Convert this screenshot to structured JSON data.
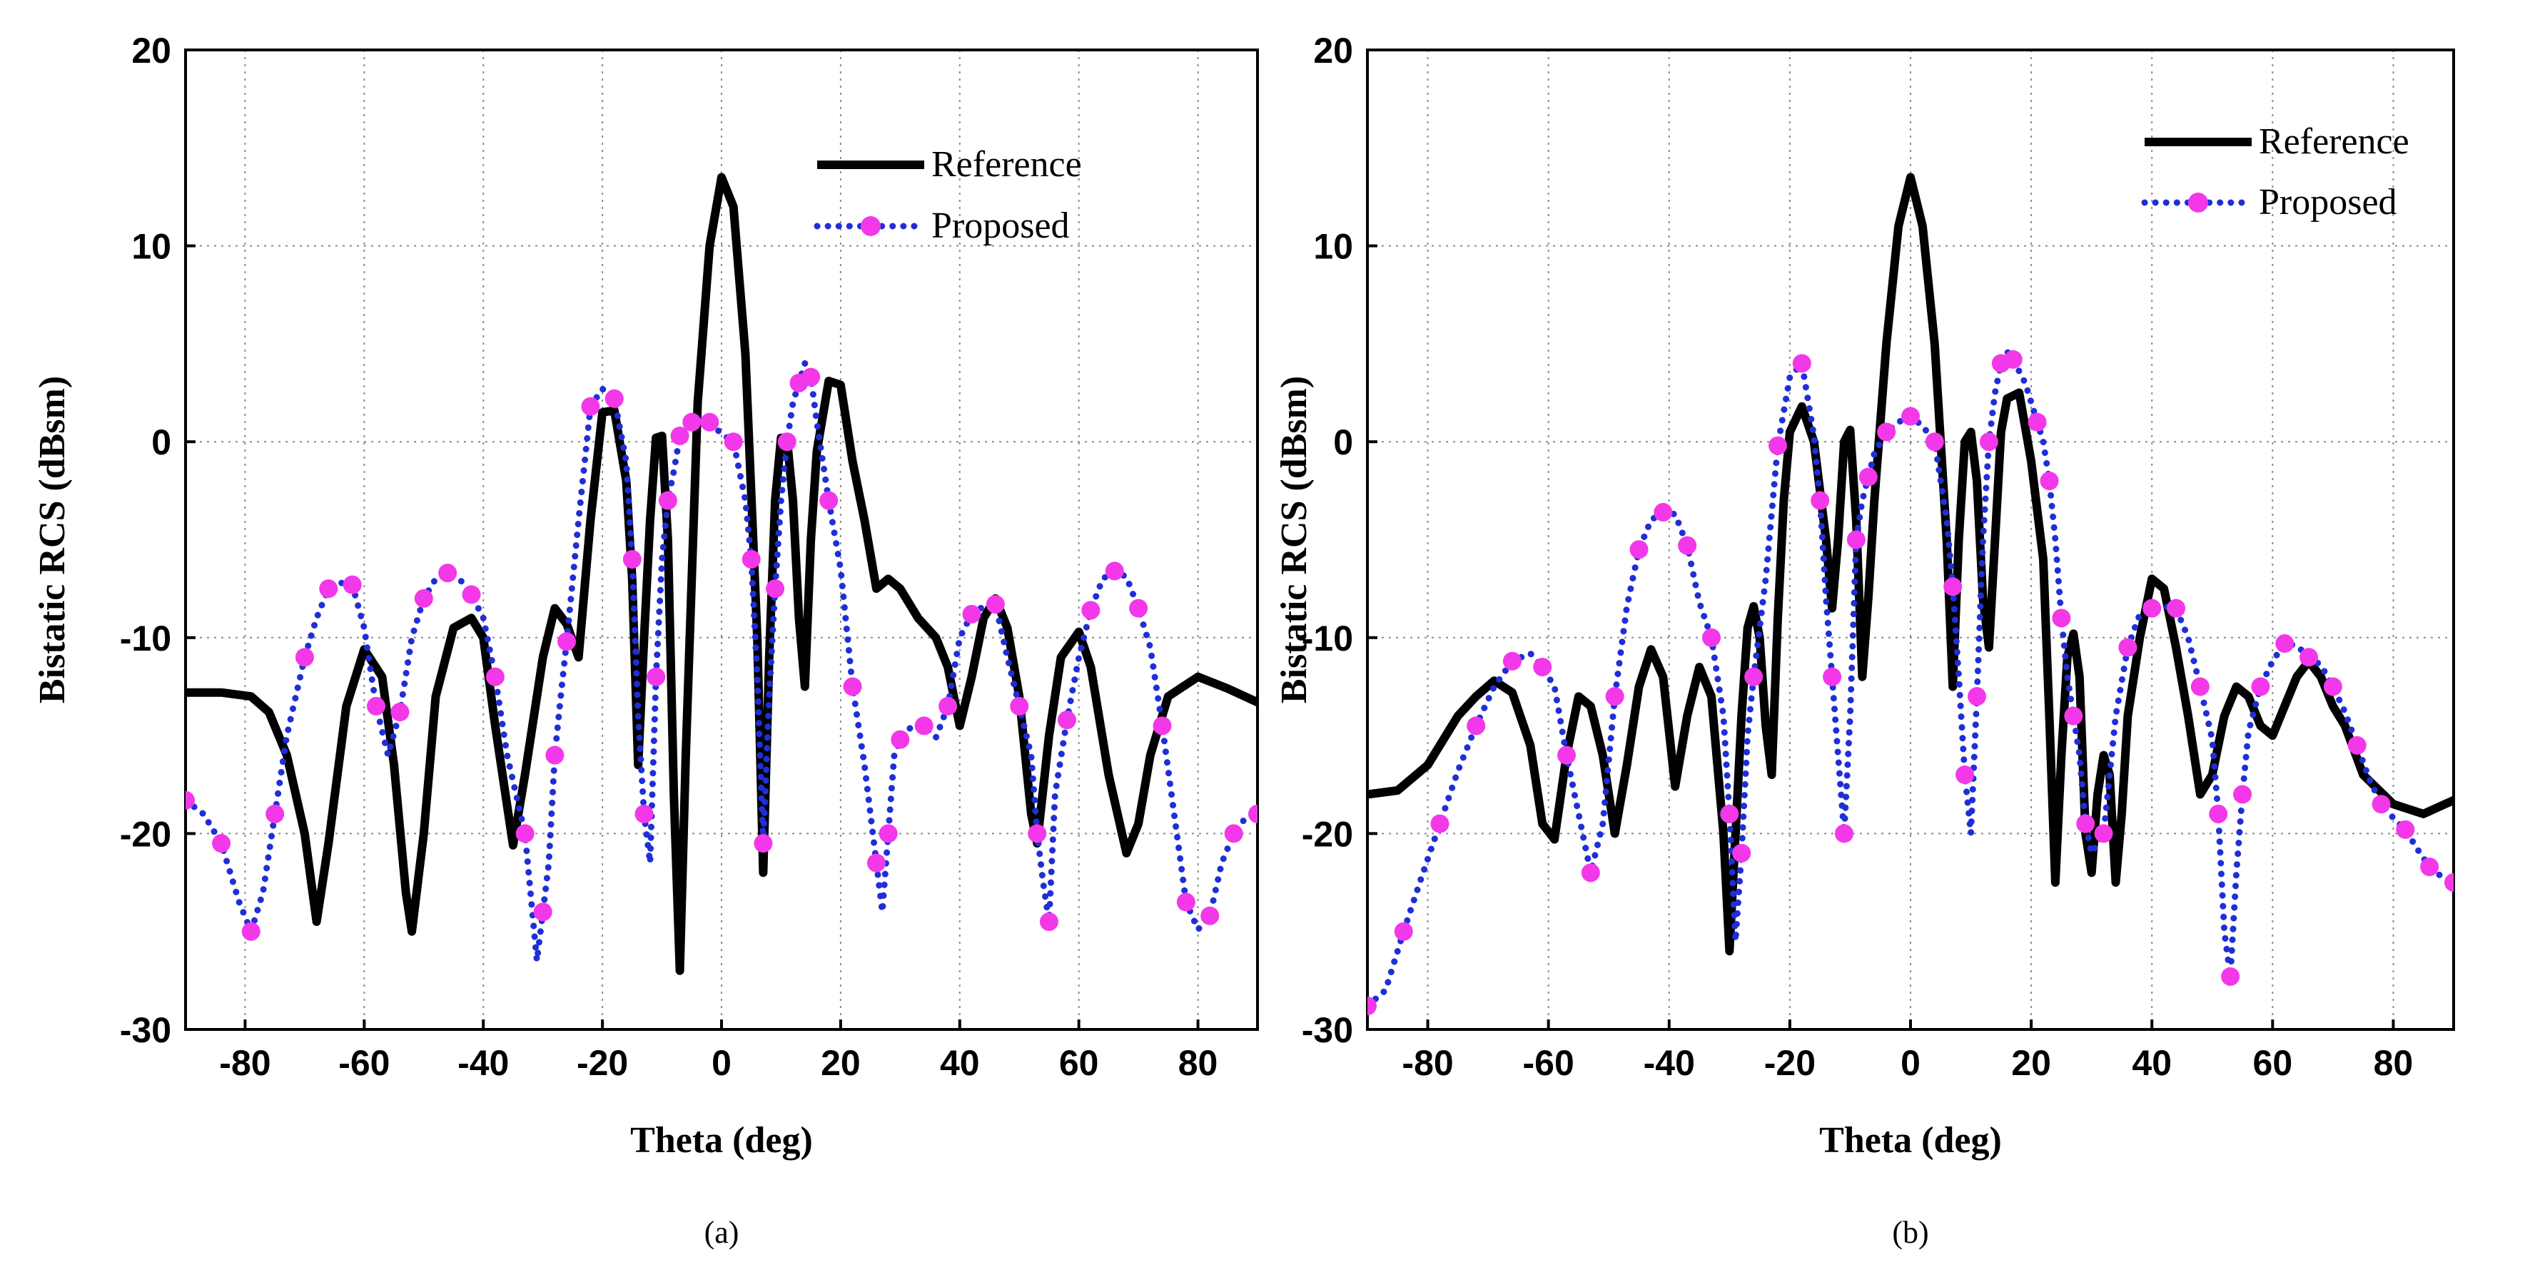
{
  "chart_data": [
    {
      "type": "line",
      "panel_label": "(a)",
      "xlabel": "Theta (deg)",
      "ylabel": "Bistatic RCS (dBsm)",
      "xlim": [
        -90,
        90
      ],
      "ylim": [
        -30,
        20
      ],
      "xticks": [
        -80,
        -60,
        -40,
        -20,
        0,
        20,
        40,
        60,
        80
      ],
      "yticks": [
        -30,
        -20,
        -10,
        0,
        10,
        20
      ],
      "grid": true,
      "legend_position": "top-right",
      "series": [
        {
          "name": "Reference",
          "style": "solid",
          "x": [
            -90,
            -84,
            -79,
            -76,
            -73,
            -70,
            -68,
            -66,
            -63,
            -60,
            -57,
            -55,
            -53,
            -52,
            -50,
            -48,
            -45,
            -42,
            -40,
            -38,
            -35,
            -33,
            -30,
            -28,
            -26,
            -24,
            -22,
            -20,
            -18,
            -16,
            -15,
            -14,
            -13,
            -12,
            -11,
            -10,
            -9,
            -8,
            -7,
            -6,
            -4,
            -2,
            0,
            2,
            4,
            6,
            7,
            8,
            9,
            10,
            11,
            12,
            13,
            14,
            15,
            16,
            18,
            20,
            22,
            24,
            26,
            28,
            30,
            33,
            36,
            38,
            40,
            42,
            44,
            46,
            48,
            50,
            52,
            53,
            55,
            57,
            60,
            62,
            65,
            68,
            70,
            72,
            75,
            80,
            85,
            90
          ],
          "y": [
            -12.8,
            -12.8,
            -13,
            -13.8,
            -16,
            -20,
            -24.5,
            -20.5,
            -13.5,
            -10.6,
            -12,
            -16.5,
            -23,
            -25,
            -20,
            -13,
            -9.5,
            -9,
            -10,
            -14.5,
            -20.6,
            -17,
            -11,
            -8.5,
            -9.3,
            -11,
            -4,
            1.5,
            1.6,
            -2,
            -7,
            -16.5,
            -10,
            -4,
            0.2,
            0.3,
            -5,
            -18,
            -27,
            -16,
            2,
            10,
            13.5,
            12,
            4.5,
            -10,
            -22,
            -11,
            -3,
            0.2,
            0.1,
            -3,
            -9,
            -12.5,
            -5,
            -0.5,
            3.1,
            2.9,
            -1,
            -4,
            -7.5,
            -7,
            -7.5,
            -9,
            -10,
            -11.5,
            -14.5,
            -12,
            -9,
            -8,
            -9.5,
            -13,
            -19,
            -20.5,
            -15,
            -11,
            -9.7,
            -11.5,
            -17,
            -21,
            -19.5,
            -16,
            -13,
            -12,
            -12.6,
            -13.3
          ]
        },
        {
          "name": "Proposed",
          "style": "dotted with markers",
          "x": [
            -90,
            -87,
            -84,
            -81,
            -79,
            -77,
            -75,
            -73,
            -70,
            -68,
            -66,
            -64,
            -62,
            -60,
            -58,
            -56,
            -54,
            -52,
            -50,
            -48,
            -46,
            -44,
            -42,
            -40,
            -38,
            -36,
            -33,
            -31,
            -30,
            -29,
            -28,
            -27,
            -26,
            -24,
            -22,
            -20,
            -18,
            -16,
            -15,
            -14,
            -13,
            -12,
            -11,
            -10,
            -9,
            -8,
            -7,
            -6,
            -5,
            -4,
            -2,
            0,
            2,
            4,
            5,
            6,
            7,
            8,
            9,
            10,
            11,
            12,
            13,
            14,
            15,
            16,
            18,
            20,
            22,
            24,
            26,
            27,
            28,
            29,
            30,
            32,
            34,
            36,
            38,
            40,
            42,
            44,
            46,
            48,
            50,
            52,
            53,
            54,
            55,
            56,
            58,
            60,
            62,
            64,
            66,
            68,
            70,
            72,
            74,
            76,
            78,
            80,
            82,
            84,
            86,
            88,
            90
          ],
          "y": [
            -18.3,
            -19,
            -20.5,
            -23.5,
            -25,
            -23,
            -19,
            -15,
            -11,
            -9,
            -7.5,
            -7.2,
            -7.3,
            -9.5,
            -13.5,
            -16,
            -13.8,
            -10,
            -8,
            -7,
            -6.7,
            -7,
            -7.8,
            -9,
            -12,
            -16,
            -20,
            -26.5,
            -24,
            -21.5,
            -16,
            -13,
            -10.2,
            -4,
            1.8,
            2.7,
            2.2,
            -1,
            -6,
            -14,
            -19,
            -21.5,
            -12,
            -6,
            -3,
            -1.5,
            0.3,
            0.6,
            1,
            1.1,
            1,
            0.4,
            0,
            -3,
            -6,
            -12,
            -20.5,
            -13,
            -7.5,
            -3,
            0,
            2,
            3,
            4,
            3.3,
            1,
            -3,
            -6.5,
            -12.5,
            -16.5,
            -21.5,
            -24,
            -20,
            -16,
            -15.2,
            -14.5,
            -14.5,
            -15.1,
            -13.5,
            -10,
            -8.8,
            -8.4,
            -8.3,
            -11,
            -13.5,
            -16,
            -20,
            -22.5,
            -24.5,
            -18,
            -14.2,
            -11,
            -8.6,
            -7,
            -6.6,
            -6.9,
            -8.5,
            -10.5,
            -14.5,
            -19,
            -23.5,
            -24.9,
            -24.2,
            -21.5,
            -20,
            -19.2,
            -19
          ]
        }
      ]
    },
    {
      "type": "line",
      "panel_label": "(b)",
      "xlabel": "Theta (deg)",
      "ylabel": "Bistatic RCS (dBsm)",
      "xlim": [
        -90,
        90
      ],
      "ylim": [
        -30,
        20
      ],
      "xticks": [
        -80,
        -60,
        -40,
        -20,
        0,
        20,
        40,
        60,
        80
      ],
      "yticks": [
        -30,
        -20,
        -10,
        0,
        10,
        20
      ],
      "grid": true,
      "legend_position": "top-right",
      "series": [
        {
          "name": "Reference",
          "style": "solid",
          "x": [
            -90,
            -85,
            -80,
            -75,
            -72,
            -69,
            -66,
            -63,
            -61,
            -59,
            -57,
            -55,
            -53,
            -51,
            -49,
            -47,
            -45,
            -43,
            -41,
            -39,
            -37,
            -35,
            -33,
            -31,
            -30,
            -29,
            -28,
            -27,
            -26,
            -25,
            -24,
            -23,
            -22,
            -21,
            -20,
            -18,
            -16,
            -14,
            -13,
            -12,
            -11,
            -10,
            -9,
            -8,
            -7,
            -6,
            -4,
            -2,
            0,
            2,
            4,
            6,
            7,
            8,
            9,
            10,
            11,
            12,
            13,
            14,
            15,
            16,
            18,
            20,
            22,
            23,
            24,
            25,
            26,
            27,
            28,
            29,
            30,
            31,
            32,
            33,
            34,
            35,
            36,
            38,
            40,
            42,
            44,
            46,
            48,
            50,
            52,
            54,
            56,
            58,
            60,
            62,
            64,
            66,
            68,
            70,
            72,
            75,
            80,
            85,
            90
          ],
          "y": [
            -18,
            -17.8,
            -16.5,
            -14,
            -13,
            -12.2,
            -12.8,
            -15.5,
            -19.5,
            -20.3,
            -16,
            -13,
            -13.5,
            -16,
            -20,
            -16.5,
            -12.5,
            -10.6,
            -12,
            -17.6,
            -14,
            -11.5,
            -13,
            -20,
            -26,
            -20,
            -14,
            -9.5,
            -8.4,
            -10,
            -14.5,
            -17,
            -9,
            -3,
            0.5,
            1.8,
            0,
            -5,
            -8.5,
            -5,
            0,
            0.6,
            -4,
            -12,
            -8,
            -3,
            5,
            11,
            13.5,
            11,
            5,
            -5,
            -12.5,
            -5,
            0,
            0.5,
            -2,
            -8,
            -10.5,
            -5,
            0.5,
            2.2,
            2.5,
            -1,
            -6,
            -14,
            -22.5,
            -16,
            -11,
            -9.8,
            -12,
            -20,
            -22,
            -18,
            -16,
            -17,
            -22.5,
            -19,
            -14,
            -10,
            -7,
            -7.5,
            -10.5,
            -14,
            -18,
            -17,
            -14,
            -12.5,
            -13,
            -14.5,
            -15,
            -13.5,
            -12,
            -11.2,
            -12,
            -13.5,
            -14.5,
            -17,
            -18.5,
            -19,
            -18.3
          ]
        },
        {
          "name": "Proposed",
          "style": "dotted with markers",
          "x": [
            -90,
            -87,
            -84,
            -81,
            -78,
            -75,
            -72,
            -69,
            -66,
            -63,
            -61,
            -59,
            -57,
            -55,
            -53,
            -51,
            -49,
            -47,
            -45,
            -43,
            -41,
            -39,
            -37,
            -35,
            -33,
            -31,
            -30,
            -29,
            -28,
            -27,
            -26,
            -24,
            -22,
            -20,
            -18,
            -16,
            -15,
            -14,
            -13,
            -12,
            -11,
            -10,
            -9,
            -8,
            -7,
            -6,
            -4,
            -2,
            0,
            2,
            4,
            6,
            7,
            8,
            9,
            10,
            11,
            12,
            13,
            14,
            15,
            16,
            17,
            19,
            21,
            22,
            23,
            24,
            25,
            26,
            27,
            28,
            29,
            30,
            32,
            34,
            36,
            38,
            40,
            42,
            44,
            46,
            48,
            50,
            51,
            52,
            53,
            54,
            55,
            56,
            58,
            60,
            62,
            64,
            66,
            68,
            70,
            72,
            74,
            76,
            78,
            80,
            82,
            84,
            86,
            88,
            90
          ],
          "y": [
            -28.8,
            -28,
            -25,
            -22.2,
            -19.5,
            -16.8,
            -14.5,
            -12.5,
            -11.2,
            -10.8,
            -11.5,
            -12.5,
            -16,
            -19,
            -22,
            -19.5,
            -13,
            -8.4,
            -5.5,
            -4,
            -3.6,
            -3.7,
            -5.3,
            -8.2,
            -10,
            -14,
            -19,
            -25.5,
            -21,
            -15,
            -12,
            -7,
            -0.2,
            3.3,
            4,
            0.3,
            -3,
            -8,
            -12,
            -16,
            -20,
            -14,
            -5,
            -3,
            -1.8,
            -0.6,
            0.5,
            1,
            1.3,
            0.8,
            0,
            -4,
            -7.4,
            -12,
            -17,
            -20,
            -13,
            -5,
            0,
            2.5,
            4,
            4.6,
            4.2,
            3,
            1,
            0,
            -2,
            -5,
            -9,
            -12,
            -14,
            -16,
            -19.5,
            -21,
            -20,
            -14,
            -10.5,
            -8.8,
            -8.5,
            -8.4,
            -8.5,
            -10,
            -12.5,
            -15.2,
            -19,
            -25,
            -27.3,
            -22,
            -18,
            -14.8,
            -12.5,
            -11.2,
            -10.3,
            -10.4,
            -11,
            -11.4,
            -12.5,
            -13.8,
            -15.5,
            -17.2,
            -18.5,
            -19.2,
            -19.8,
            -20.8,
            -21.7,
            -22.2,
            -22.5
          ]
        }
      ]
    }
  ]
}
